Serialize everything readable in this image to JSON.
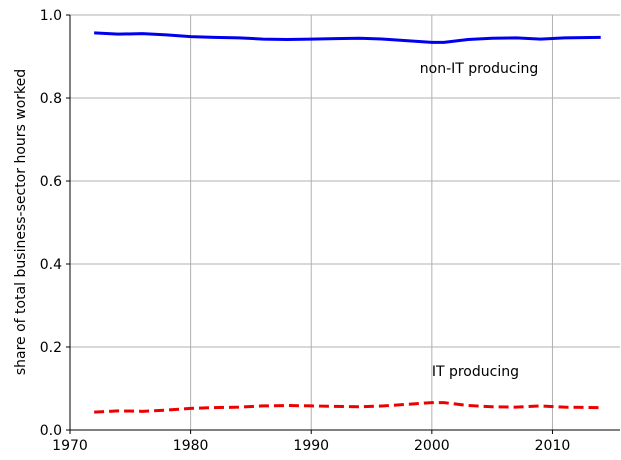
{
  "chart_data": {
    "type": "line",
    "y_label": "share of total business-sector hours worked",
    "x": [
      1972,
      1974,
      1976,
      1978,
      1980,
      1982,
      1984,
      1986,
      1988,
      1990,
      1992,
      1994,
      1996,
      1998,
      2000,
      2001,
      2003,
      2005,
      2007,
      2009,
      2011,
      2014
    ],
    "series": [
      {
        "name": "non-IT producing",
        "color": "#0000ee",
        "dash": "solid",
        "values": [
          0.957,
          0.954,
          0.955,
          0.952,
          0.948,
          0.946,
          0.945,
          0.942,
          0.941,
          0.942,
          0.943,
          0.944,
          0.942,
          0.938,
          0.934,
          0.934,
          0.941,
          0.944,
          0.945,
          0.942,
          0.945,
          0.946
        ]
      },
      {
        "name": "IT producing",
        "color": "#ee0000",
        "dash": "dashed",
        "values": [
          0.043,
          0.046,
          0.045,
          0.048,
          0.052,
          0.054,
          0.055,
          0.058,
          0.059,
          0.058,
          0.057,
          0.056,
          0.058,
          0.062,
          0.066,
          0.066,
          0.059,
          0.056,
          0.055,
          0.058,
          0.055,
          0.054
        ]
      }
    ],
    "label_positions": [
      {
        "x": 1999,
        "y": 0.86
      },
      {
        "x": 2000,
        "y": 0.13
      }
    ],
    "xlim": [
      1970,
      2015.6
    ],
    "ylim": [
      0,
      1
    ],
    "xticks": [
      1970,
      1980,
      1990,
      2000,
      2010
    ],
    "yticks": [
      {
        "value": 0,
        "label": "0.0"
      },
      0.2,
      0.4,
      0.6,
      0.8,
      {
        "value": 1,
        "label": "1.0"
      }
    ],
    "grid": true
  }
}
